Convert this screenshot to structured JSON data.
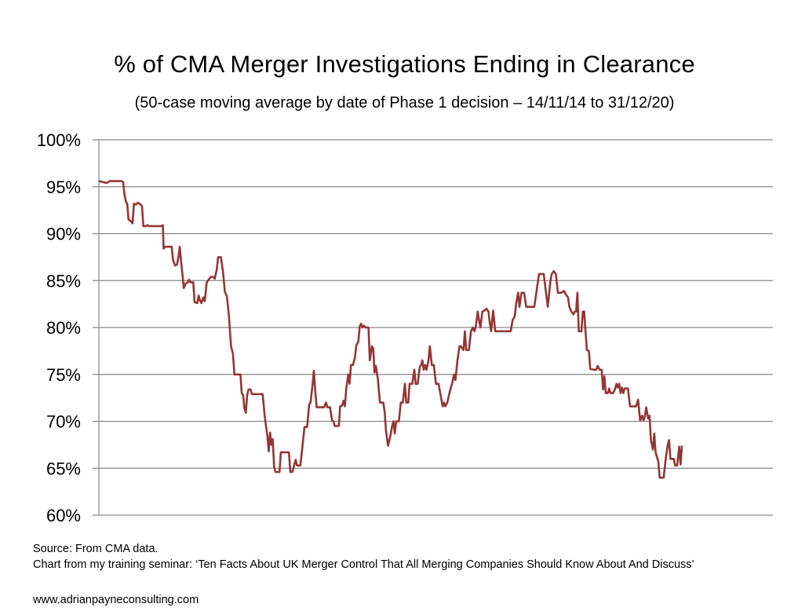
{
  "chart_data": {
    "type": "line",
    "title": "% of CMA Merger Investigations Ending in Clearance",
    "subtitle": "(50-case moving average by date of Phase 1 decision  – 14/11/14 to 31/12/20)",
    "xlabel": "",
    "ylabel": "",
    "x_range": [
      "14/11/14",
      "31/12/20"
    ],
    "x_units": "fraction of period (0 = 14/11/14, 1 = 31/12/20)",
    "ylim": [
      60,
      100
    ],
    "yticks": [
      100,
      95,
      90,
      85,
      80,
      75,
      70,
      65,
      60
    ],
    "ytick_labels": [
      "100%",
      "95%",
      "90%",
      "85%",
      "80%",
      "75%",
      "70%",
      "65%",
      "60%"
    ],
    "grid": "horizontal",
    "legend": "none",
    "line_color": "#943634",
    "series": [
      {
        "name": "50-case moving average",
        "points": [
          [
            0.0,
            95.6
          ],
          [
            0.006,
            95.5
          ],
          [
            0.012,
            95.4
          ],
          [
            0.016,
            95.6
          ],
          [
            0.022,
            95.6
          ],
          [
            0.03,
            95.6
          ],
          [
            0.034,
            95.6
          ],
          [
            0.036,
            95.5
          ],
          [
            0.038,
            94.2
          ],
          [
            0.04,
            93.4
          ],
          [
            0.042,
            93.2
          ],
          [
            0.044,
            91.5
          ],
          [
            0.048,
            91.3
          ],
          [
            0.05,
            91.1
          ],
          [
            0.052,
            93.2
          ],
          [
            0.055,
            93.1
          ],
          [
            0.058,
            93.3
          ],
          [
            0.062,
            93.1
          ],
          [
            0.064,
            92.9
          ],
          [
            0.066,
            90.8
          ],
          [
            0.07,
            90.8
          ],
          [
            0.072,
            90.9
          ],
          [
            0.075,
            90.8
          ],
          [
            0.085,
            90.8
          ],
          [
            0.093,
            90.8
          ],
          [
            0.095,
            90.9
          ],
          [
            0.096,
            88.4
          ],
          [
            0.098,
            88.6
          ],
          [
            0.104,
            88.6
          ],
          [
            0.108,
            88.6
          ],
          [
            0.11,
            87.2
          ],
          [
            0.113,
            86.6
          ],
          [
            0.116,
            86.7
          ],
          [
            0.118,
            87.5
          ],
          [
            0.12,
            88.6
          ],
          [
            0.122,
            87.0
          ],
          [
            0.124,
            85.7
          ],
          [
            0.126,
            84.2
          ],
          [
            0.129,
            84.7
          ],
          [
            0.132,
            84.8
          ],
          [
            0.134,
            85.1
          ],
          [
            0.136,
            84.8
          ],
          [
            0.14,
            84.8
          ],
          [
            0.142,
            82.7
          ],
          [
            0.146,
            82.6
          ],
          [
            0.148,
            83.4
          ],
          [
            0.15,
            82.9
          ],
          [
            0.152,
            82.6
          ],
          [
            0.155,
            83.2
          ],
          [
            0.157,
            82.8
          ],
          [
            0.16,
            84.8
          ],
          [
            0.163,
            85.1
          ],
          [
            0.166,
            85.4
          ],
          [
            0.17,
            85.4
          ],
          [
            0.172,
            85.2
          ],
          [
            0.175,
            86.2
          ],
          [
            0.177,
            87.5
          ],
          [
            0.181,
            87.5
          ],
          [
            0.184,
            86.0
          ],
          [
            0.187,
            83.8
          ],
          [
            0.19,
            83.3
          ],
          [
            0.193,
            81.2
          ],
          [
            0.196,
            78.0
          ],
          [
            0.199,
            77.2
          ],
          [
            0.201,
            75.0
          ],
          [
            0.206,
            75.0
          ],
          [
            0.21,
            75.0
          ],
          [
            0.212,
            73.0
          ],
          [
            0.214,
            72.8
          ],
          [
            0.216,
            71.4
          ],
          [
            0.218,
            70.9
          ],
          [
            0.22,
            72.8
          ],
          [
            0.222,
            73.4
          ],
          [
            0.225,
            73.4
          ],
          [
            0.227,
            72.9
          ],
          [
            0.233,
            72.9
          ],
          [
            0.24,
            72.9
          ],
          [
            0.243,
            72.9
          ],
          [
            0.246,
            70.6
          ],
          [
            0.248,
            69.5
          ],
          [
            0.25,
            68.4
          ],
          [
            0.252,
            66.8
          ],
          [
            0.254,
            68.8
          ],
          [
            0.256,
            67.5
          ],
          [
            0.258,
            68.1
          ],
          [
            0.26,
            65.2
          ],
          [
            0.262,
            64.6
          ],
          [
            0.266,
            64.6
          ],
          [
            0.268,
            64.6
          ],
          [
            0.27,
            66.7
          ],
          [
            0.276,
            66.7
          ],
          [
            0.282,
            66.7
          ],
          [
            0.284,
            64.6
          ],
          [
            0.287,
            64.6
          ],
          [
            0.29,
            65.4
          ],
          [
            0.292,
            65.9
          ],
          [
            0.294,
            65.3
          ],
          [
            0.299,
            65.3
          ],
          [
            0.302,
            67.3
          ],
          [
            0.305,
            69.4
          ],
          [
            0.309,
            69.4
          ],
          [
            0.312,
            71.8
          ],
          [
            0.314,
            72.0
          ],
          [
            0.317,
            73.9
          ],
          [
            0.319,
            75.4
          ],
          [
            0.321,
            73.3
          ],
          [
            0.323,
            71.5
          ],
          [
            0.328,
            71.5
          ],
          [
            0.334,
            71.5
          ],
          [
            0.337,
            72.0
          ],
          [
            0.339,
            71.5
          ],
          [
            0.343,
            71.5
          ],
          [
            0.346,
            70.1
          ],
          [
            0.348,
            70.0
          ],
          [
            0.35,
            69.5
          ],
          [
            0.356,
            69.5
          ],
          [
            0.358,
            71.6
          ],
          [
            0.361,
            71.7
          ],
          [
            0.363,
            72.2
          ],
          [
            0.365,
            71.6
          ],
          [
            0.367,
            73.5
          ],
          [
            0.37,
            75.0
          ],
          [
            0.372,
            74.0
          ],
          [
            0.374,
            76.0
          ],
          [
            0.377,
            76.0
          ],
          [
            0.38,
            76.8
          ],
          [
            0.382,
            78.1
          ],
          [
            0.385,
            78.5
          ],
          [
            0.387,
            80.1
          ],
          [
            0.389,
            80.4
          ],
          [
            0.391,
            80.0
          ],
          [
            0.393,
            80.2
          ],
          [
            0.396,
            80.0
          ],
          [
            0.4,
            80.0
          ],
          [
            0.402,
            76.5
          ],
          [
            0.405,
            78.0
          ],
          [
            0.407,
            77.8
          ],
          [
            0.409,
            75.2
          ],
          [
            0.411,
            75.9
          ],
          [
            0.414,
            74.5
          ],
          [
            0.417,
            72.0
          ],
          [
            0.422,
            72.0
          ],
          [
            0.424,
            71.0
          ],
          [
            0.426,
            69.0
          ],
          [
            0.429,
            67.4
          ],
          [
            0.432,
            68.3
          ],
          [
            0.435,
            69.5
          ],
          [
            0.437,
            70.0
          ],
          [
            0.439,
            68.7
          ],
          [
            0.441,
            70.0
          ],
          [
            0.445,
            70.0
          ],
          [
            0.448,
            72.0
          ],
          [
            0.451,
            72.0
          ],
          [
            0.454,
            74.0
          ],
          [
            0.456,
            72.0
          ],
          [
            0.459,
            72.0
          ],
          [
            0.461,
            74.0
          ],
          [
            0.465,
            74.0
          ],
          [
            0.468,
            75.5
          ],
          [
            0.47,
            74.0
          ],
          [
            0.473,
            74.0
          ],
          [
            0.476,
            75.8
          ],
          [
            0.478,
            76.0
          ],
          [
            0.48,
            76.5
          ],
          [
            0.482,
            75.5
          ],
          [
            0.484,
            76.0
          ],
          [
            0.486,
            75.5
          ],
          [
            0.489,
            76.5
          ],
          [
            0.491,
            78.0
          ],
          [
            0.494,
            76.0
          ],
          [
            0.497,
            76.0
          ],
          [
            0.5,
            74.0
          ],
          [
            0.504,
            74.0
          ],
          [
            0.507,
            72.8
          ],
          [
            0.51,
            71.6
          ],
          [
            0.512,
            72.0
          ],
          [
            0.514,
            71.6
          ],
          [
            0.517,
            72.0
          ],
          [
            0.52,
            73.0
          ],
          [
            0.524,
            74.0
          ],
          [
            0.527,
            75.0
          ],
          [
            0.529,
            74.4
          ],
          [
            0.532,
            76.5
          ],
          [
            0.535,
            78.0
          ],
          [
            0.537,
            78.0
          ],
          [
            0.541,
            77.6
          ],
          [
            0.543,
            79.6
          ],
          [
            0.545,
            77.6
          ],
          [
            0.549,
            77.6
          ],
          [
            0.552,
            79.6
          ],
          [
            0.555,
            80.0
          ],
          [
            0.557,
            79.6
          ],
          [
            0.559,
            80.0
          ],
          [
            0.562,
            81.7
          ],
          [
            0.564,
            80.8
          ],
          [
            0.566,
            80.0
          ],
          [
            0.569,
            81.7
          ],
          [
            0.572,
            81.8
          ],
          [
            0.575,
            82.0
          ],
          [
            0.578,
            81.7
          ],
          [
            0.58,
            80.5
          ],
          [
            0.582,
            79.6
          ],
          [
            0.585,
            81.8
          ],
          [
            0.588,
            79.6
          ],
          [
            0.6,
            79.6
          ],
          [
            0.611,
            79.6
          ],
          [
            0.614,
            80.8
          ],
          [
            0.617,
            81.2
          ],
          [
            0.619,
            82.5
          ],
          [
            0.622,
            83.7
          ],
          [
            0.624,
            82.2
          ],
          [
            0.627,
            83.7
          ],
          [
            0.631,
            83.7
          ],
          [
            0.634,
            82.2
          ],
          [
            0.637,
            82.2
          ],
          [
            0.646,
            82.2
          ],
          [
            0.649,
            83.7
          ],
          [
            0.653,
            85.7
          ],
          [
            0.66,
            85.7
          ],
          [
            0.666,
            82.2
          ],
          [
            0.67,
            85.0
          ],
          [
            0.672,
            85.7
          ],
          [
            0.675,
            86.0
          ],
          [
            0.678,
            85.7
          ],
          [
            0.681,
            83.7
          ],
          [
            0.686,
            83.7
          ],
          [
            0.69,
            83.9
          ],
          [
            0.693,
            83.5
          ],
          [
            0.696,
            83.2
          ],
          [
            0.698,
            82.2
          ],
          [
            0.701,
            81.7
          ],
          [
            0.704,
            81.4
          ],
          [
            0.706,
            81.7
          ],
          [
            0.708,
            81.7
          ],
          [
            0.71,
            83.7
          ],
          [
            0.712,
            79.6
          ],
          [
            0.716,
            79.6
          ],
          [
            0.718,
            81.7
          ],
          [
            0.72,
            81.7
          ],
          [
            0.722,
            79.6
          ],
          [
            0.724,
            77.6
          ],
          [
            0.727,
            77.5
          ],
          [
            0.729,
            75.6
          ],
          [
            0.734,
            75.5
          ],
          [
            0.738,
            75.5
          ],
          [
            0.74,
            75.9
          ],
          [
            0.743,
            75.5
          ],
          [
            0.746,
            75.5
          ],
          [
            0.748,
            73.4
          ],
          [
            0.75,
            74.8
          ],
          [
            0.752,
            73.0
          ],
          [
            0.755,
            73.0
          ],
          [
            0.757,
            73.5
          ],
          [
            0.759,
            73.0
          ],
          [
            0.763,
            73.0
          ],
          [
            0.766,
            73.5
          ],
          [
            0.768,
            74.0
          ],
          [
            0.77,
            73.6
          ],
          [
            0.772,
            74.0
          ],
          [
            0.774,
            73.0
          ],
          [
            0.776,
            73.6
          ],
          [
            0.778,
            73.0
          ],
          [
            0.78,
            73.5
          ],
          [
            0.785,
            73.5
          ],
          [
            0.788,
            71.6
          ],
          [
            0.797,
            71.6
          ],
          [
            0.8,
            72.3
          ],
          [
            0.803,
            70.1
          ],
          [
            0.806,
            70.6
          ],
          [
            0.808,
            70.1
          ],
          [
            0.81,
            70.5
          ],
          [
            0.812,
            71.5
          ],
          [
            0.815,
            70.3
          ],
          [
            0.817,
            70.6
          ],
          [
            0.819,
            68.0
          ],
          [
            0.822,
            67.0
          ],
          [
            0.824,
            68.7
          ],
          [
            0.826,
            66.7
          ],
          [
            0.83,
            65.7
          ],
          [
            0.832,
            64.0
          ],
          [
            0.838,
            64.0
          ],
          [
            0.841,
            66.0
          ],
          [
            0.844,
            67.5
          ],
          [
            0.846,
            68.0
          ],
          [
            0.848,
            66.0
          ],
          [
            0.853,
            66.0
          ],
          [
            0.855,
            65.3
          ],
          [
            0.858,
            65.3
          ],
          [
            0.861,
            67.3
          ],
          [
            0.863,
            65.4
          ],
          [
            0.865,
            67.4
          ]
        ]
      }
    ]
  },
  "footer": {
    "source": "Source: From CMA data.",
    "credit": "Chart from my training seminar: ‘Ten Facts About UK Merger Control That All Merging Companies Should Know About And Discuss’",
    "website": "www.adrianpayneconsulting.com"
  }
}
